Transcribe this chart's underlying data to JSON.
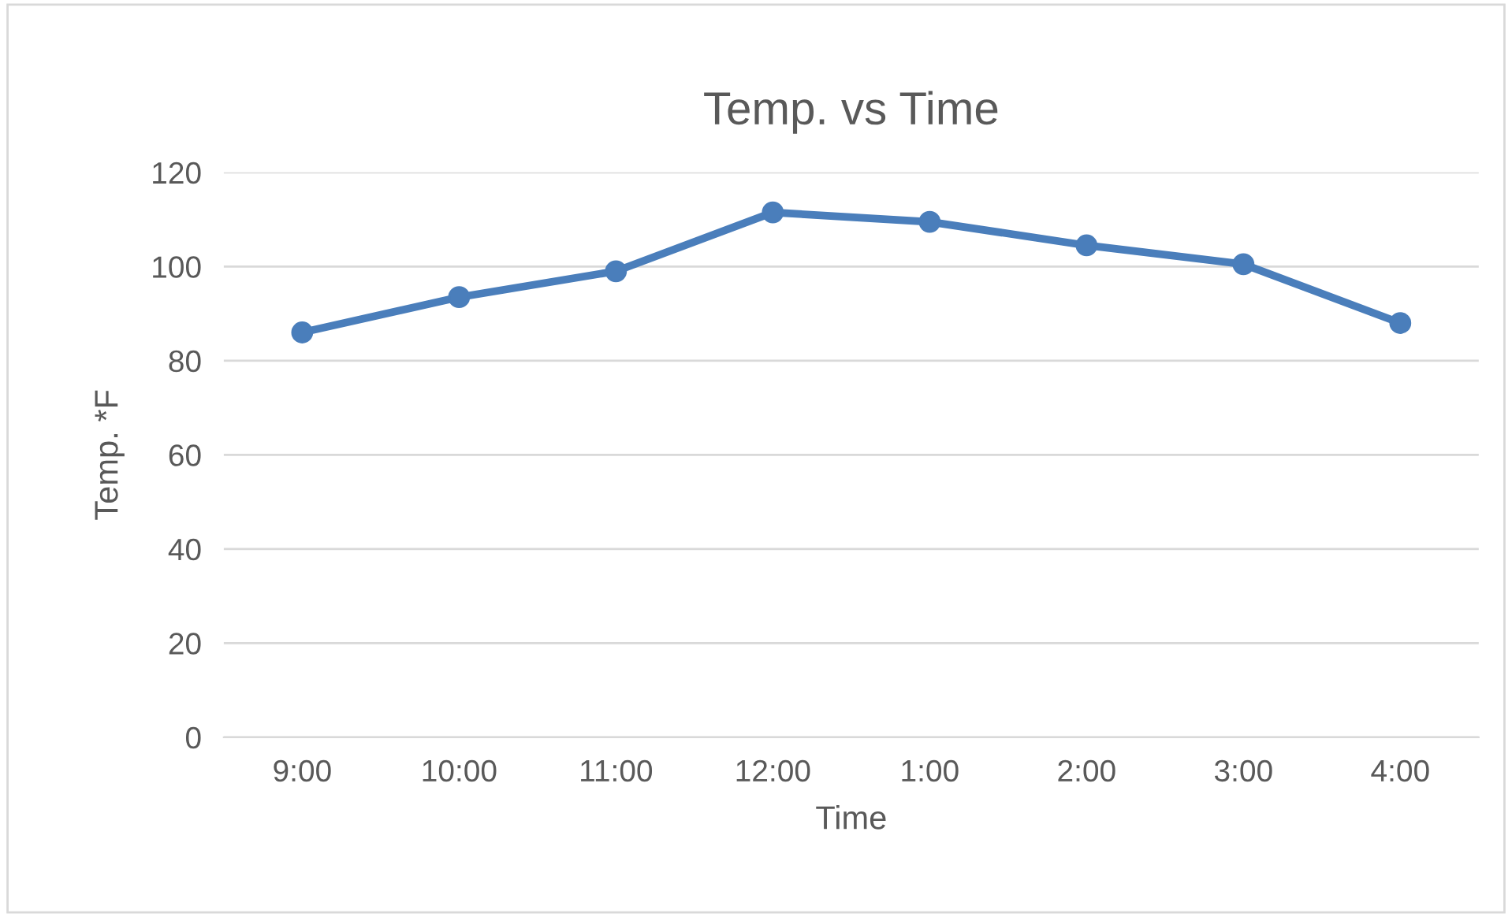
{
  "chart_data": {
    "type": "line",
    "title": "Temp. vs Time",
    "xlabel": "Time",
    "ylabel": "Temp. *F",
    "categories": [
      "9:00",
      "10:00",
      "11:00",
      "12:00",
      "1:00",
      "2:00",
      "3:00",
      "4:00"
    ],
    "series": [
      {
        "color": "#4a7ebb",
        "values": [
          86,
          93.5,
          99,
          111.5,
          109.5,
          104.5,
          100.5,
          88
        ]
      }
    ],
    "ylim": [
      0,
      120
    ],
    "yticks": [
      0,
      20,
      40,
      60,
      80,
      100,
      120
    ],
    "grid": "y",
    "marker": "circle",
    "line_style": "solid",
    "legend": false
  }
}
